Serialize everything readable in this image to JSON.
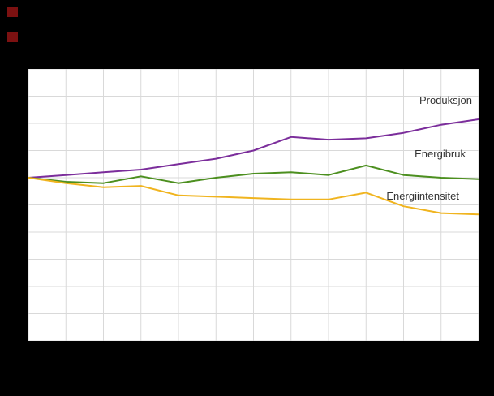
{
  "page": {
    "background": "#000000"
  },
  "decorations": {
    "logo_mark_color": "#7c1111"
  },
  "chart_data": {
    "type": "line",
    "x_index": [
      1,
      2,
      3,
      4,
      5,
      6,
      7,
      8,
      9,
      10,
      11,
      12,
      13
    ],
    "series": [
      {
        "name": "Produksjon",
        "color": "#7b2d9b",
        "values": [
          100,
          101,
          102,
          103,
          105,
          107,
          110,
          115,
          114,
          114.5,
          116.5,
          119.5,
          121.5
        ]
      },
      {
        "name": "Energibruk",
        "color": "#4c8f1f",
        "values": [
          100,
          98.5,
          98,
          100.5,
          98,
          100,
          101.5,
          102,
          101,
          104.5,
          101,
          100,
          99.5
        ]
      },
      {
        "name": "Energiintensitet",
        "color": "#f0b41f",
        "values": [
          100,
          98,
          96.5,
          97,
          93.5,
          93,
          92.5,
          92,
          92,
          94.5,
          89.5,
          87,
          86.5
        ]
      }
    ],
    "ylim": [
      40,
      140
    ],
    "y_gridline_step": 10,
    "x_gridline_count": 13,
    "grid": true,
    "legend_position": "inline-right",
    "plot_background": "#ffffff",
    "grid_color": "#d9d9d9",
    "label_color": "#333333",
    "line_width": 2
  }
}
